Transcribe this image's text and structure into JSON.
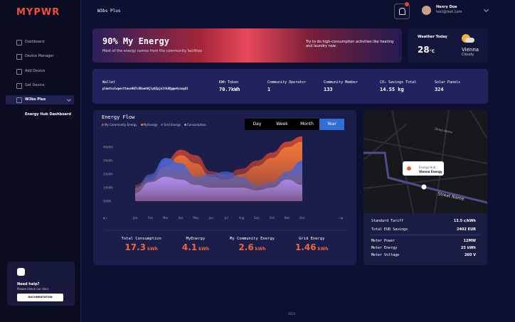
{
  "sidebar": {
    "logo": "MYPWR",
    "nav": [
      "Dashboard",
      "Device Manager",
      "Add Device",
      "Get Device",
      "W3bs Plus"
    ],
    "subnav": "Energy Hub Dashboard",
    "help": {
      "title": "Need help?",
      "text": "Please check our docs",
      "button": "DOCUMENTATION"
    }
  },
  "topbar": {
    "title": "W3bs Plus",
    "user_name": "Henry Doe",
    "user_email": "test@test.com"
  },
  "banner": {
    "title": "90% My Energy",
    "subtitle": "Most of the energy comes from the community facilities",
    "tip": "Try to do high-consumption activities like heating and laundry now."
  },
  "weather": {
    "label": "Weather Today",
    "temp": "28",
    "unit": "°C",
    "city": "Vienna",
    "condition": "Cloudy"
  },
  "stats": [
    {
      "label": "Wallet",
      "value": "plmntvolopertteos907c88aeh0jly82pjn1tk8@gqe4cnxq81"
    },
    {
      "label": "KWh Token",
      "value": "70.7kWh"
    },
    {
      "label": "Community Operator",
      "value": "1"
    },
    {
      "label": "Community Member",
      "value": "133"
    },
    {
      "label": "CO₂ Savings Total",
      "value": "14.55 kg"
    },
    {
      "label": "Solar Panels",
      "value": "324"
    }
  ],
  "energy_flow": {
    "type": "area",
    "title": "Energy Flow",
    "periods": [
      "Day",
      "Week",
      "Month",
      "Year"
    ],
    "selected_period": "Year",
    "categories": [
      "Jan",
      "Feb",
      "Mar",
      "Apr",
      "May",
      "Jun",
      "Jul",
      "Aug",
      "Sep",
      "Oct",
      "Nov",
      "Dec"
    ],
    "ylim": [
      0,
      50
    ],
    "yticks": [
      {
        "value": 0,
        "label": "0kWh"
      },
      {
        "value": 10,
        "label": "10kWh"
      },
      {
        "value": 20,
        "label": "20kWh"
      },
      {
        "value": 30,
        "label": "30kWh"
      },
      {
        "value": 40,
        "label": "40kWh"
      }
    ],
    "series": [
      {
        "name": "My Community Energy",
        "color": "#d9482f",
        "values": [
          12,
          18,
          30,
          38,
          34,
          22,
          20,
          24,
          30,
          36,
          44,
          48
        ]
      },
      {
        "name": "MyEnergy",
        "color": "#f07a3a",
        "values": [
          10,
          15,
          26,
          34,
          28,
          18,
          16,
          20,
          26,
          32,
          40,
          44
        ]
      },
      {
        "name": "Grid Energy",
        "color": "#3f63d8",
        "values": [
          10,
          20,
          32,
          28,
          18,
          20,
          22,
          18,
          12,
          14,
          22,
          30
        ]
      },
      {
        "name": "Consumption",
        "color": "#b48cf0",
        "values": [
          6,
          14,
          18,
          16,
          12,
          10,
          10,
          10,
          8,
          10,
          16,
          12
        ]
      }
    ],
    "totals": [
      {
        "label": "Total Consumption",
        "value": "17.3",
        "unit": "kWh"
      },
      {
        "label": "MyEnergy",
        "value": "4.1",
        "unit": "kWh"
      },
      {
        "label": "My Community Energy",
        "value": "2.6",
        "unit": "kWh"
      },
      {
        "label": "Grid Energy",
        "value": "1.46",
        "unit": "kWh"
      }
    ]
  },
  "map": {
    "street_labels": [
      "Street Name",
      "Street Name"
    ],
    "marker_label": "Energy Hub :",
    "marker_name": "Vienna Energy",
    "rows": [
      {
        "label": "Standard Tariff",
        "value": "13.5 c/kWh"
      },
      {
        "label": "Total EUR Savings",
        "value": "2402 EUR"
      },
      {
        "label": "Meter Power",
        "value": "12MW"
      },
      {
        "label": "Meter Energy",
        "value": "25 kWh"
      },
      {
        "label": "Meter Voltage",
        "value": "260 V"
      }
    ]
  },
  "footer": "2024"
}
